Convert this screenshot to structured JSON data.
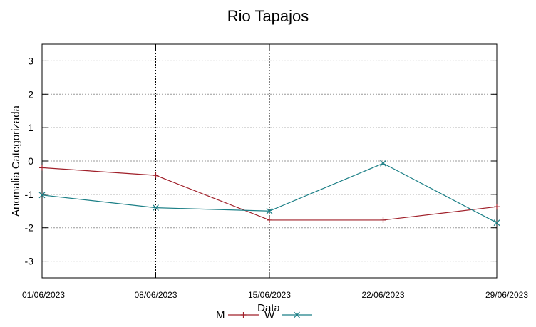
{
  "chart_data": {
    "type": "line",
    "title": "Rio Tapajos",
    "xlabel": "Data",
    "ylabel": "Anomalia Categorizada",
    "categories": [
      "01/06/2023",
      "08/06/2023",
      "15/06/2023",
      "22/06/2023",
      "29/06/2023"
    ],
    "ylim": [
      -3.5,
      3.5
    ],
    "yticks": [
      3,
      2,
      1,
      0,
      -1,
      -2,
      -3
    ],
    "grid": true,
    "legend_position": "bottom",
    "series": [
      {
        "name": "M",
        "color": "#a0202a",
        "marker": "plus",
        "values": [
          -0.2,
          -0.43,
          -1.77,
          -1.77,
          -1.37
        ]
      },
      {
        "name": "W",
        "color": "#1b7f86",
        "marker": "cross",
        "values": [
          -1.02,
          -1.4,
          -1.5,
          -0.07,
          -1.85
        ]
      }
    ]
  }
}
